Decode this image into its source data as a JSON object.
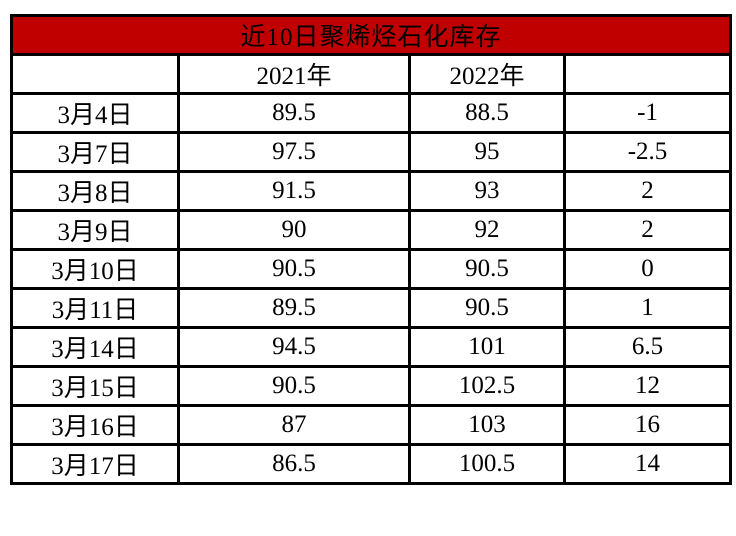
{
  "title": "近10日聚烯烃石化库存",
  "columns": {
    "date": "",
    "y2021": "2021年",
    "y2022": "2022年",
    "diff": ""
  },
  "rows": [
    {
      "date": "3月4日",
      "y2021": "89.5",
      "y2022": "88.5",
      "diff": "-1"
    },
    {
      "date": "3月7日",
      "y2021": "97.5",
      "y2022": "95",
      "diff": "-2.5"
    },
    {
      "date": "3月8日",
      "y2021": "91.5",
      "y2022": "93",
      "diff": "2"
    },
    {
      "date": "3月9日",
      "y2021": "90",
      "y2022": "92",
      "diff": "2"
    },
    {
      "date": "3月10日",
      "y2021": "90.5",
      "y2022": "90.5",
      "diff": "0"
    },
    {
      "date": "3月11日",
      "y2021": "89.5",
      "y2022": "90.5",
      "diff": "1"
    },
    {
      "date": "3月14日",
      "y2021": "94.5",
      "y2022": "101",
      "diff": "6.5"
    },
    {
      "date": "3月15日",
      "y2021": "90.5",
      "y2022": "102.5",
      "diff": "12"
    },
    {
      "date": "3月16日",
      "y2021": "87",
      "y2022": "103",
      "diff": "16"
    },
    {
      "date": "3月17日",
      "y2021": "86.5",
      "y2022": "100.5",
      "diff": "14"
    }
  ],
  "colors": {
    "header_bg": "#C00000",
    "header_text": "#FFFFFF",
    "border": "#000000",
    "cell_bg": "#FFFFFF"
  },
  "chart_data": {
    "type": "table",
    "title": "近10日聚烯烃石化库存",
    "categories": [
      "3月4日",
      "3月7日",
      "3月8日",
      "3月9日",
      "3月10日",
      "3月11日",
      "3月14日",
      "3月15日",
      "3月16日",
      "3月17日"
    ],
    "series": [
      {
        "name": "2021年",
        "values": [
          89.5,
          97.5,
          91.5,
          90,
          90.5,
          89.5,
          94.5,
          90.5,
          87,
          86.5
        ]
      },
      {
        "name": "2022年",
        "values": [
          88.5,
          95,
          93,
          92,
          90.5,
          90.5,
          101,
          102.5,
          103,
          100.5
        ]
      },
      {
        "name": "",
        "values": [
          -1,
          -2.5,
          2,
          2,
          0,
          1,
          6.5,
          12,
          16,
          14
        ]
      }
    ],
    "layout": "title banner row, blank-label date column, two year columns, unlabeled difference column; black grid borders on white; dark red title banner"
  }
}
